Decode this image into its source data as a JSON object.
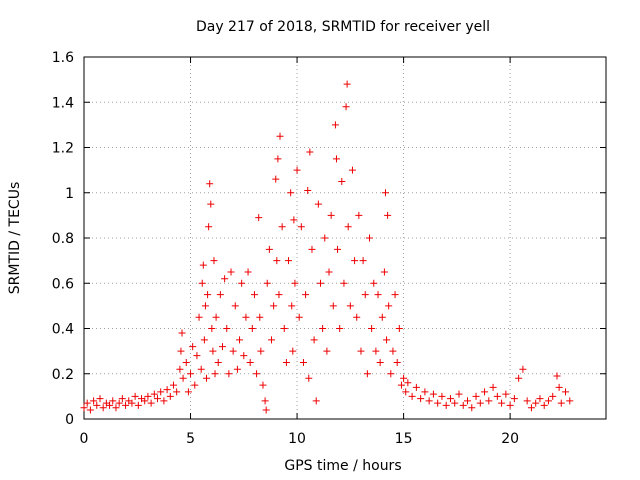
{
  "chart_data": {
    "type": "scatter",
    "title": "Day 217 of 2018, SRMTID for receiver yell",
    "xlabel": "GPS time / hours",
    "ylabel": "SRMTID / TECUs",
    "xlim": [
      0,
      24.5
    ],
    "ylim": [
      0,
      1.6
    ],
    "grid": true,
    "marker": "plus",
    "series_color": "#ee0000",
    "x_ticks": [
      0,
      5,
      10,
      15,
      20
    ],
    "x_tick_labels": [
      "0",
      "5",
      "10",
      "15",
      "20"
    ],
    "y_ticks": [
      0,
      0.2,
      0.4,
      0.6,
      0.8,
      1.0,
      1.2,
      1.4,
      1.6
    ],
    "y_tick_labels": [
      "0",
      "0.2",
      "0.4",
      "0.6",
      "0.8",
      "1",
      "1.2",
      "1.4",
      "1.6"
    ],
    "points": [
      [
        0.0,
        0.05
      ],
      [
        0.15,
        0.07
      ],
      [
        0.3,
        0.04
      ],
      [
        0.45,
        0.08
      ],
      [
        0.6,
        0.06
      ],
      [
        0.75,
        0.09
      ],
      [
        0.9,
        0.05
      ],
      [
        1.05,
        0.07
      ],
      [
        1.2,
        0.06
      ],
      [
        1.35,
        0.08
      ],
      [
        1.5,
        0.05
      ],
      [
        1.65,
        0.07
      ],
      [
        1.8,
        0.09
      ],
      [
        1.95,
        0.06
      ],
      [
        2.1,
        0.08
      ],
      [
        2.25,
        0.07
      ],
      [
        2.4,
        0.1
      ],
      [
        2.55,
        0.06
      ],
      [
        2.7,
        0.09
      ],
      [
        2.85,
        0.08
      ],
      [
        3.0,
        0.1
      ],
      [
        3.15,
        0.07
      ],
      [
        3.3,
        0.11
      ],
      [
        3.45,
        0.09
      ],
      [
        3.6,
        0.12
      ],
      [
        3.75,
        0.08
      ],
      [
        3.9,
        0.13
      ],
      [
        4.05,
        0.1
      ],
      [
        4.2,
        0.15
      ],
      [
        4.35,
        0.12
      ],
      [
        4.5,
        0.22
      ],
      [
        4.55,
        0.3
      ],
      [
        4.6,
        0.38
      ],
      [
        4.65,
        0.18
      ],
      [
        4.8,
        0.25
      ],
      [
        4.9,
        0.12
      ],
      [
        5.0,
        0.2
      ],
      [
        5.1,
        0.32
      ],
      [
        5.2,
        0.15
      ],
      [
        5.3,
        0.28
      ],
      [
        5.4,
        0.45
      ],
      [
        5.5,
        0.22
      ],
      [
        5.55,
        0.6
      ],
      [
        5.6,
        0.68
      ],
      [
        5.65,
        0.35
      ],
      [
        5.7,
        0.5
      ],
      [
        5.75,
        0.18
      ],
      [
        5.8,
        0.55
      ],
      [
        5.85,
        0.85
      ],
      [
        5.9,
        1.04
      ],
      [
        5.95,
        0.95
      ],
      [
        6.0,
        0.4
      ],
      [
        6.05,
        0.3
      ],
      [
        6.1,
        0.7
      ],
      [
        6.15,
        0.2
      ],
      [
        6.2,
        0.45
      ],
      [
        6.3,
        0.25
      ],
      [
        6.4,
        0.55
      ],
      [
        6.5,
        0.32
      ],
      [
        6.6,
        0.62
      ],
      [
        6.7,
        0.4
      ],
      [
        6.8,
        0.2
      ],
      [
        6.9,
        0.65
      ],
      [
        7.0,
        0.3
      ],
      [
        7.1,
        0.5
      ],
      [
        7.2,
        0.22
      ],
      [
        7.3,
        0.35
      ],
      [
        7.4,
        0.6
      ],
      [
        7.5,
        0.28
      ],
      [
        7.6,
        0.45
      ],
      [
        7.7,
        0.65
      ],
      [
        7.8,
        0.25
      ],
      [
        7.9,
        0.4
      ],
      [
        8.0,
        0.55
      ],
      [
        8.1,
        0.2
      ],
      [
        8.2,
        0.89
      ],
      [
        8.25,
        0.45
      ],
      [
        8.3,
        0.3
      ],
      [
        8.4,
        0.15
      ],
      [
        8.5,
        0.08
      ],
      [
        8.55,
        0.04
      ],
      [
        8.6,
        0.6
      ],
      [
        8.7,
        0.75
      ],
      [
        8.8,
        0.35
      ],
      [
        8.9,
        0.5
      ],
      [
        9.0,
        1.06
      ],
      [
        9.05,
        0.7
      ],
      [
        9.1,
        1.15
      ],
      [
        9.15,
        0.55
      ],
      [
        9.2,
        1.25
      ],
      [
        9.3,
        0.85
      ],
      [
        9.4,
        0.4
      ],
      [
        9.5,
        0.25
      ],
      [
        9.6,
        0.7
      ],
      [
        9.7,
        1.0
      ],
      [
        9.75,
        0.5
      ],
      [
        9.8,
        0.3
      ],
      [
        9.85,
        0.88
      ],
      [
        9.9,
        0.6
      ],
      [
        10.0,
        1.1
      ],
      [
        10.1,
        0.45
      ],
      [
        10.2,
        0.85
      ],
      [
        10.3,
        0.25
      ],
      [
        10.4,
        0.55
      ],
      [
        10.5,
        1.01
      ],
      [
        10.55,
        0.18
      ],
      [
        10.6,
        1.18
      ],
      [
        10.7,
        0.75
      ],
      [
        10.8,
        0.35
      ],
      [
        10.9,
        0.08
      ],
      [
        11.0,
        0.95
      ],
      [
        11.1,
        0.6
      ],
      [
        11.2,
        0.4
      ],
      [
        11.3,
        0.8
      ],
      [
        11.4,
        0.3
      ],
      [
        11.5,
        0.65
      ],
      [
        11.6,
        0.9
      ],
      [
        11.7,
        0.5
      ],
      [
        11.8,
        1.3
      ],
      [
        11.85,
        1.15
      ],
      [
        11.9,
        0.75
      ],
      [
        12.0,
        0.4
      ],
      [
        12.1,
        1.05
      ],
      [
        12.2,
        0.6
      ],
      [
        12.3,
        1.38
      ],
      [
        12.35,
        1.48
      ],
      [
        12.4,
        0.85
      ],
      [
        12.5,
        0.5
      ],
      [
        12.6,
        1.1
      ],
      [
        12.7,
        0.7
      ],
      [
        12.8,
        0.45
      ],
      [
        12.9,
        0.9
      ],
      [
        13.0,
        0.3
      ],
      [
        13.1,
        0.7
      ],
      [
        13.2,
        0.55
      ],
      [
        13.3,
        0.2
      ],
      [
        13.4,
        0.8
      ],
      [
        13.5,
        0.4
      ],
      [
        13.6,
        0.6
      ],
      [
        13.7,
        0.3
      ],
      [
        13.8,
        0.55
      ],
      [
        13.9,
        0.25
      ],
      [
        14.0,
        0.45
      ],
      [
        14.1,
        0.65
      ],
      [
        14.15,
        1.0
      ],
      [
        14.2,
        0.35
      ],
      [
        14.25,
        0.9
      ],
      [
        14.3,
        0.5
      ],
      [
        14.4,
        0.2
      ],
      [
        14.5,
        0.3
      ],
      [
        14.6,
        0.55
      ],
      [
        14.7,
        0.25
      ],
      [
        14.8,
        0.4
      ],
      [
        14.9,
        0.15
      ],
      [
        15.0,
        0.18
      ],
      [
        15.1,
        0.12
      ],
      [
        15.2,
        0.16
      ],
      [
        15.4,
        0.1
      ],
      [
        15.6,
        0.14
      ],
      [
        15.8,
        0.09
      ],
      [
        16.0,
        0.12
      ],
      [
        16.2,
        0.08
      ],
      [
        16.4,
        0.11
      ],
      [
        16.6,
        0.07
      ],
      [
        16.8,
        0.1
      ],
      [
        17.0,
        0.06
      ],
      [
        17.2,
        0.09
      ],
      [
        17.4,
        0.07
      ],
      [
        17.6,
        0.11
      ],
      [
        17.8,
        0.06
      ],
      [
        18.0,
        0.08
      ],
      [
        18.2,
        0.05
      ],
      [
        18.4,
        0.1
      ],
      [
        18.6,
        0.07
      ],
      [
        18.8,
        0.12
      ],
      [
        19.0,
        0.08
      ],
      [
        19.2,
        0.14
      ],
      [
        19.4,
        0.1
      ],
      [
        19.6,
        0.07
      ],
      [
        19.8,
        0.11
      ],
      [
        20.0,
        0.06
      ],
      [
        20.2,
        0.09
      ],
      [
        20.4,
        0.18
      ],
      [
        20.6,
        0.22
      ],
      [
        20.8,
        0.08
      ],
      [
        21.0,
        0.05
      ],
      [
        21.2,
        0.07
      ],
      [
        21.4,
        0.09
      ],
      [
        21.6,
        0.06
      ],
      [
        21.8,
        0.08
      ],
      [
        22.0,
        0.1
      ],
      [
        22.2,
        0.19
      ],
      [
        22.3,
        0.14
      ],
      [
        22.4,
        0.07
      ],
      [
        22.6,
        0.12
      ],
      [
        22.8,
        0.08
      ]
    ]
  }
}
